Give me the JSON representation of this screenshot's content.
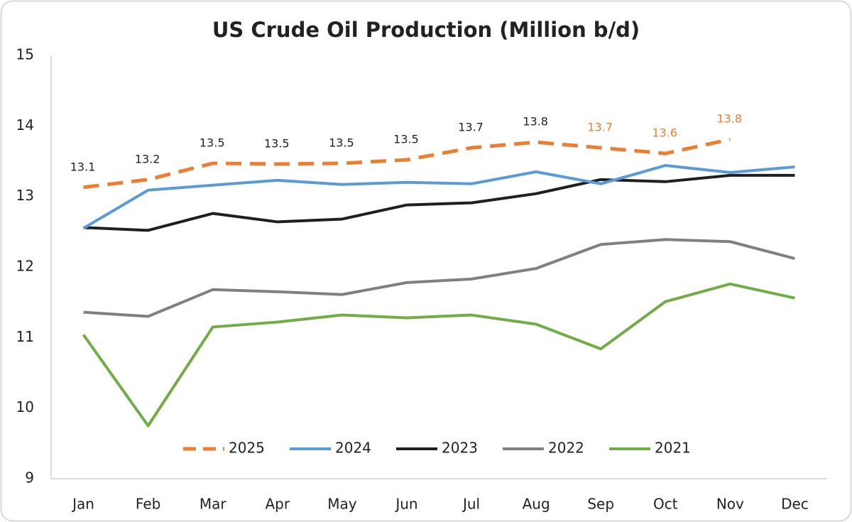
{
  "chart_data": {
    "type": "line",
    "title": "US Crude Oil Production (Million b/d)",
    "categories": [
      "Jan",
      "Feb",
      "Mar",
      "Apr",
      "May",
      "Jun",
      "Jul",
      "Aug",
      "Sep",
      "Oct",
      "Nov",
      "Dec"
    ],
    "series": [
      {
        "name": "2025",
        "color": "#ed7d31",
        "dashed": true,
        "values": [
          13.13,
          13.24,
          13.47,
          13.46,
          13.47,
          13.52,
          13.69,
          13.77,
          13.69,
          13.61,
          13.81,
          null
        ],
        "value_labels": [
          "13.1",
          "13.2",
          "13.5",
          "13.5",
          "13.5",
          "13.5",
          "13.7",
          "13.8",
          "13.7",
          "13.6",
          "13.8",
          null
        ],
        "value_label_colors": [
          "#222222",
          "#222222",
          "#222222",
          "#222222",
          "#222222",
          "#222222",
          "#222222",
          "#222222",
          "#ed7d31",
          "#ed7d31",
          "#ed7d31",
          null
        ]
      },
      {
        "name": "2024",
        "color": "#5b9bd5",
        "values": [
          12.55,
          13.09,
          13.16,
          13.23,
          13.17,
          13.2,
          13.18,
          13.35,
          13.18,
          13.44,
          13.34,
          13.42
        ]
      },
      {
        "name": "2023",
        "color": "#1f1f1f",
        "values": [
          12.56,
          12.52,
          12.76,
          12.64,
          12.68,
          12.88,
          12.91,
          13.04,
          13.24,
          13.21,
          13.3,
          13.3
        ]
      },
      {
        "name": "2022",
        "color": "#808080",
        "values": [
          11.36,
          11.3,
          11.68,
          11.65,
          11.61,
          11.78,
          11.83,
          11.98,
          12.32,
          12.39,
          12.36,
          12.12
        ]
      },
      {
        "name": "2021",
        "color": "#70ad47",
        "values": [
          11.04,
          9.75,
          11.15,
          11.22,
          11.32,
          11.28,
          11.32,
          11.19,
          10.84,
          11.51,
          11.76,
          11.56
        ]
      }
    ],
    "ylim": [
      9,
      15
    ],
    "yticks": [
      9,
      10,
      11,
      12,
      13,
      14,
      15
    ],
    "grid": false,
    "legend": "bottom"
  }
}
